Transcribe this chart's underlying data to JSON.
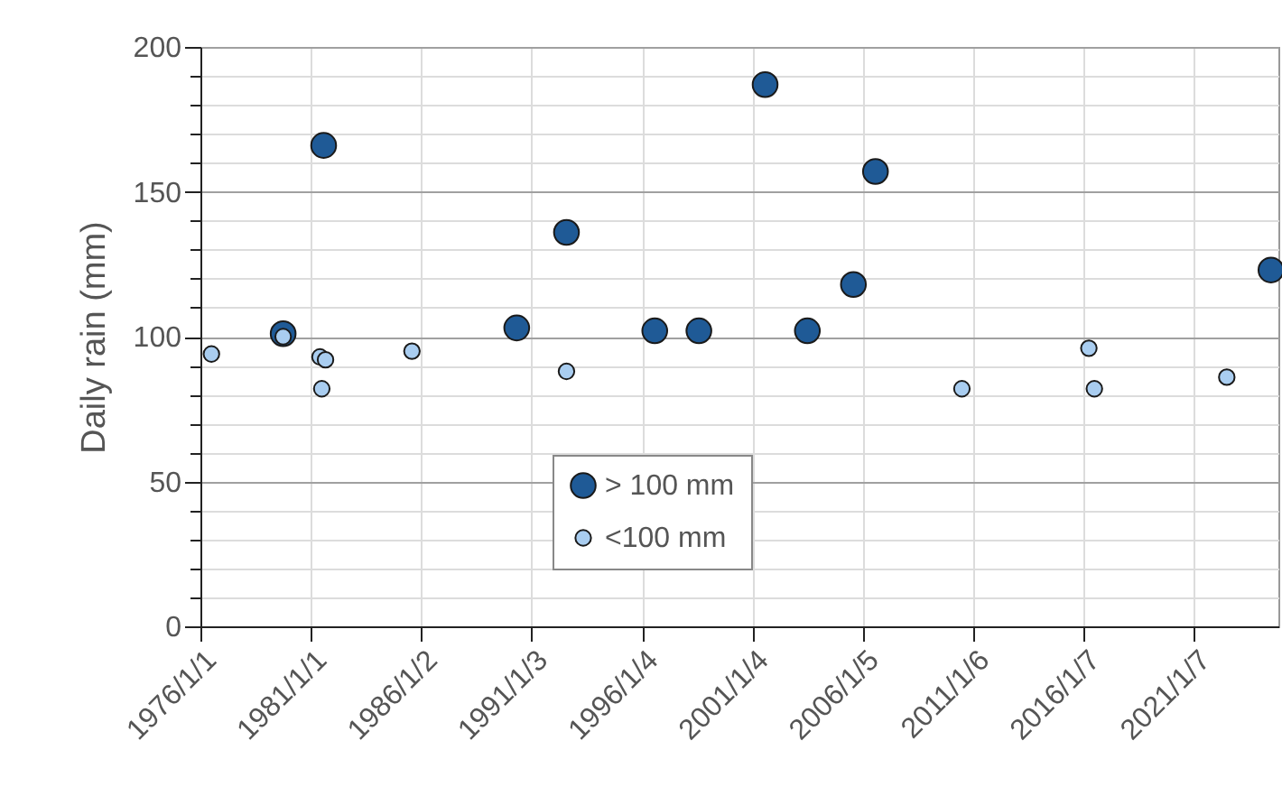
{
  "chart_data": {
    "type": "scatter",
    "ylabel": "Daily rain (mm)",
    "legend": "bottom",
    "grid": true,
    "marker": "circle",
    "xlim": [
      "1976-01-01",
      "2024-11-01"
    ],
    "xticks": [
      {
        "value": "1976-01-01",
        "label": "1976/1/1"
      },
      {
        "value": "1981-01-01",
        "label": "1981/1/1"
      },
      {
        "value": "1986-01-02",
        "label": "1986/1/2"
      },
      {
        "value": "1991-01-03",
        "label": "1991/1/3"
      },
      {
        "value": "1996-01-04",
        "label": "1996/1/4"
      },
      {
        "value": "2001-01-04",
        "label": "2001/1/4"
      },
      {
        "value": "2006-01-05",
        "label": "2006/1/5"
      },
      {
        "value": "2011-01-06",
        "label": "2011/1/6"
      },
      {
        "value": "2016-01-07",
        "label": "2016/1/7"
      },
      {
        "value": "2021-01-07",
        "label": "2021/1/7"
      }
    ],
    "ylim": [
      0,
      200
    ],
    "yticks": [
      0,
      {
        "value": 10,
        "label": null
      },
      {
        "value": 20,
        "label": null
      },
      {
        "value": 30,
        "label": null
      },
      {
        "value": 40,
        "label": null
      },
      50,
      {
        "value": 60,
        "label": null
      },
      {
        "value": 70,
        "label": null
      },
      {
        "value": 80,
        "label": null
      },
      {
        "value": 90,
        "label": null
      },
      100,
      {
        "value": 110,
        "label": null
      },
      {
        "value": 120,
        "label": null
      },
      {
        "value": 130,
        "label": null
      },
      {
        "value": 140,
        "label": null
      },
      150,
      {
        "value": 160,
        "label": null
      },
      {
        "value": 170,
        "label": null
      },
      {
        "value": 180,
        "label": null
      },
      {
        "value": 190,
        "label": null
      },
      200
    ],
    "series": [
      {
        "name": "> 100 mm",
        "color": "#1f5a96",
        "x": [
          "1979-10",
          "1981-08",
          "1990-05",
          "1992-08",
          "1996-08",
          "1998-08",
          "2001-08",
          "2003-07",
          "2005-08",
          "2006-08",
          "2024-07"
        ],
        "values": [
          101,
          166,
          103,
          136,
          102,
          102,
          187,
          102,
          118,
          157,
          123
        ]
      },
      {
        "name": "<100 mm",
        "color": "#a9cdf0",
        "x": [
          "1976-07",
          "1979-10",
          "1981-06",
          "1981-09",
          "1981-07",
          "1985-08",
          "1992-08",
          "2010-07",
          "2016-04",
          "2016-07",
          "2022-07"
        ],
        "values": [
          94,
          100,
          93,
          92,
          82,
          95,
          88,
          82,
          96,
          82,
          86
        ]
      }
    ]
  }
}
